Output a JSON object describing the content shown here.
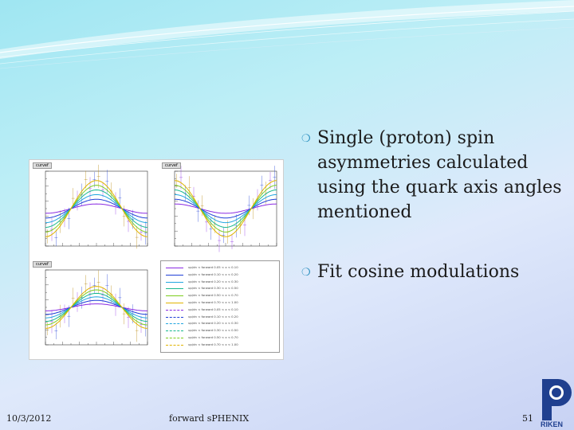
{
  "slide": {
    "bullets": [
      "Single (proton) spin asymmetries calculated using the quark axis angles mentioned",
      "Fit  cosine modulations"
    ],
    "footer": {
      "date": "10/3/2012",
      "center": "forward sPHENIX",
      "page": "51"
    },
    "logo_text": "RIKEN"
  },
  "figure": {
    "panel_titles": [
      "curvef",
      "curvef",
      "curvef"
    ],
    "legend": [
      {
        "text": "up/dn < forward 0.05 < x < 0.10",
        "color": "#8a2be2",
        "dashed": false
      },
      {
        "text": "up/dn < forward 0.10 < x < 0.20",
        "color": "#1f3fd6",
        "dashed": false
      },
      {
        "text": "up/dn < forward 0.20 < x < 0.30",
        "color": "#22a6e0",
        "dashed": false
      },
      {
        "text": "up/dn < forward 0.30 < x < 0.50",
        "color": "#17b88f",
        "dashed": false
      },
      {
        "text": "up/dn < forward 0.50 < x < 0.70",
        "color": "#7ccd1c",
        "dashed": false
      },
      {
        "text": "up/dn < forward 0.70 < x < 1.00",
        "color": "#e0b400",
        "dashed": false
      },
      {
        "text": "up/dn < forward 0.05 < x < 0.10",
        "color": "#8a2be2",
        "dashed": true
      },
      {
        "text": "up/dn < forward 0.10 < x < 0.20",
        "color": "#1f3fd6",
        "dashed": true
      },
      {
        "text": "up/dn < forward 0.20 < x < 0.30",
        "color": "#22a6e0",
        "dashed": true
      },
      {
        "text": "up/dn < forward 0.30 < x < 0.50",
        "color": "#17b88f",
        "dashed": true
      },
      {
        "text": "up/dn < forward 0.50 < x < 0.70",
        "color": "#7ccd1c",
        "dashed": true
      },
      {
        "text": "up/dn < forward 0.70 < x < 1.00",
        "color": "#e0b400",
        "dashed": true
      }
    ],
    "curve_colors": [
      "#8a2be2",
      "#1f3fd6",
      "#22a6e0",
      "#17b88f",
      "#7ccd1c",
      "#e0b400"
    ],
    "amplitudes_top": [
      0.02,
      0.04,
      0.06,
      0.08,
      0.1,
      0.12
    ],
    "amplitudes_bottom": [
      0.015,
      0.03,
      0.045,
      0.06,
      0.075,
      0.09
    ]
  },
  "colors": {
    "accent": "#2a8fbf",
    "logo_blue": "#1f3f8f"
  }
}
